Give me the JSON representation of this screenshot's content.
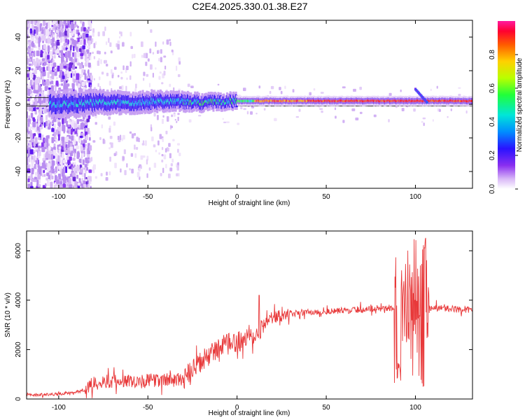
{
  "chart_data": [
    {
      "type": "heatmap",
      "title": "C2E4.2025.330.01.38.E27",
      "xlabel": "Height of straight line (km)",
      "ylabel": "Frequency (Hz)",
      "xlim": [
        -118,
        132
      ],
      "ylim": [
        -50,
        50
      ],
      "xticks": [
        -100,
        -50,
        0,
        50,
        100
      ],
      "yticks": [
        -40,
        -20,
        0,
        20,
        40
      ],
      "colorbar": {
        "label": "Normalized spectral amplitude",
        "range": [
          0,
          1
        ],
        "ticks": [
          "0.0",
          "0.2",
          "0.4",
          "0.6",
          "0.8"
        ]
      },
      "ridge": [
        {
          "x": -100,
          "y": 0
        },
        {
          "x": -80,
          "y": 1
        },
        {
          "x": -60,
          "y": 1
        },
        {
          "x": -40,
          "y": 2
        },
        {
          "x": -20,
          "y": 1
        },
        {
          "x": 0,
          "y": 2
        },
        {
          "x": 20,
          "y": 2
        },
        {
          "x": 50,
          "y": 2
        },
        {
          "x": 80,
          "y": 2
        },
        {
          "x": 100,
          "y": 2
        },
        {
          "x": 132,
          "y": 2
        }
      ],
      "reference_lines_hz": [
        -1,
        4
      ]
    },
    {
      "type": "line",
      "xlabel": "Height of straight line (km)",
      "ylabel": "SNR (10 * v/v)",
      "xlim": [
        -118,
        132
      ],
      "ylim": [
        0,
        6800
      ],
      "xticks": [
        -100,
        -50,
        0,
        50,
        100
      ],
      "yticks": [
        0,
        2000,
        4000,
        6000
      ],
      "series": [
        {
          "name": "SNR",
          "color": "#e8393a",
          "trend": [
            {
              "x": -118,
              "y": 150
            },
            {
              "x": -100,
              "y": 200
            },
            {
              "x": -85,
              "y": 350
            },
            {
              "x": -80,
              "y": 700
            },
            {
              "x": -50,
              "y": 750
            },
            {
              "x": -30,
              "y": 800
            },
            {
              "x": -20,
              "y": 1500
            },
            {
              "x": -10,
              "y": 2100
            },
            {
              "x": 0,
              "y": 2300
            },
            {
              "x": 10,
              "y": 2700
            },
            {
              "x": 20,
              "y": 3300
            },
            {
              "x": 35,
              "y": 3500
            },
            {
              "x": 55,
              "y": 3550
            },
            {
              "x": 75,
              "y": 3650
            },
            {
              "x": 88,
              "y": 3700
            },
            {
              "x": 110,
              "y": 3700
            },
            {
              "x": 132,
              "y": 3600
            }
          ]
        }
      ]
    }
  ]
}
